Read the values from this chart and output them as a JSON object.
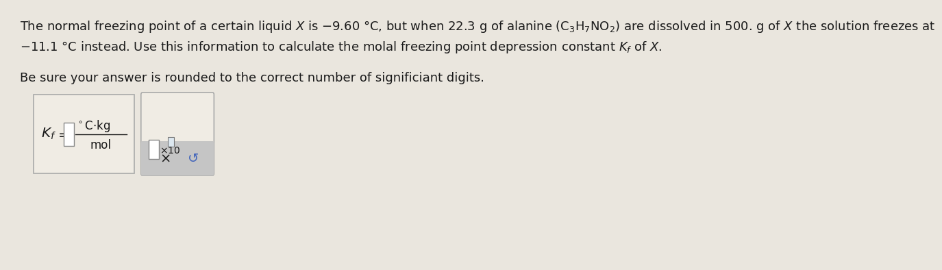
{
  "background_color": "#eae6de",
  "text_line1": "The normal freezing point of a certain liquid $X$ is $-9.60$ °C, but when 22.3 g of alanine (C$_3$H$_7$NO$_2$) are dissolved in 500. g of $X$ the solution freezes at",
  "text_line2": "$-11.1$ °C instead. Use this information to calculate the molal freezing point depression constant $K_f$ of $X$.",
  "text_line3": "Be sure your answer is rounded to the correct number of significiant digits.",
  "box1_color": "#f0ece4",
  "box2_color": "#f0ece4",
  "box2_bottom_color": "#c5c5c5",
  "input_box_color": "#ffffff",
  "text_color": "#1a1a1a",
  "font_size_main": 13.0,
  "font_size_formula": 13.5,
  "font_size_small": 10.5,
  "undo_color": "#4466bb"
}
